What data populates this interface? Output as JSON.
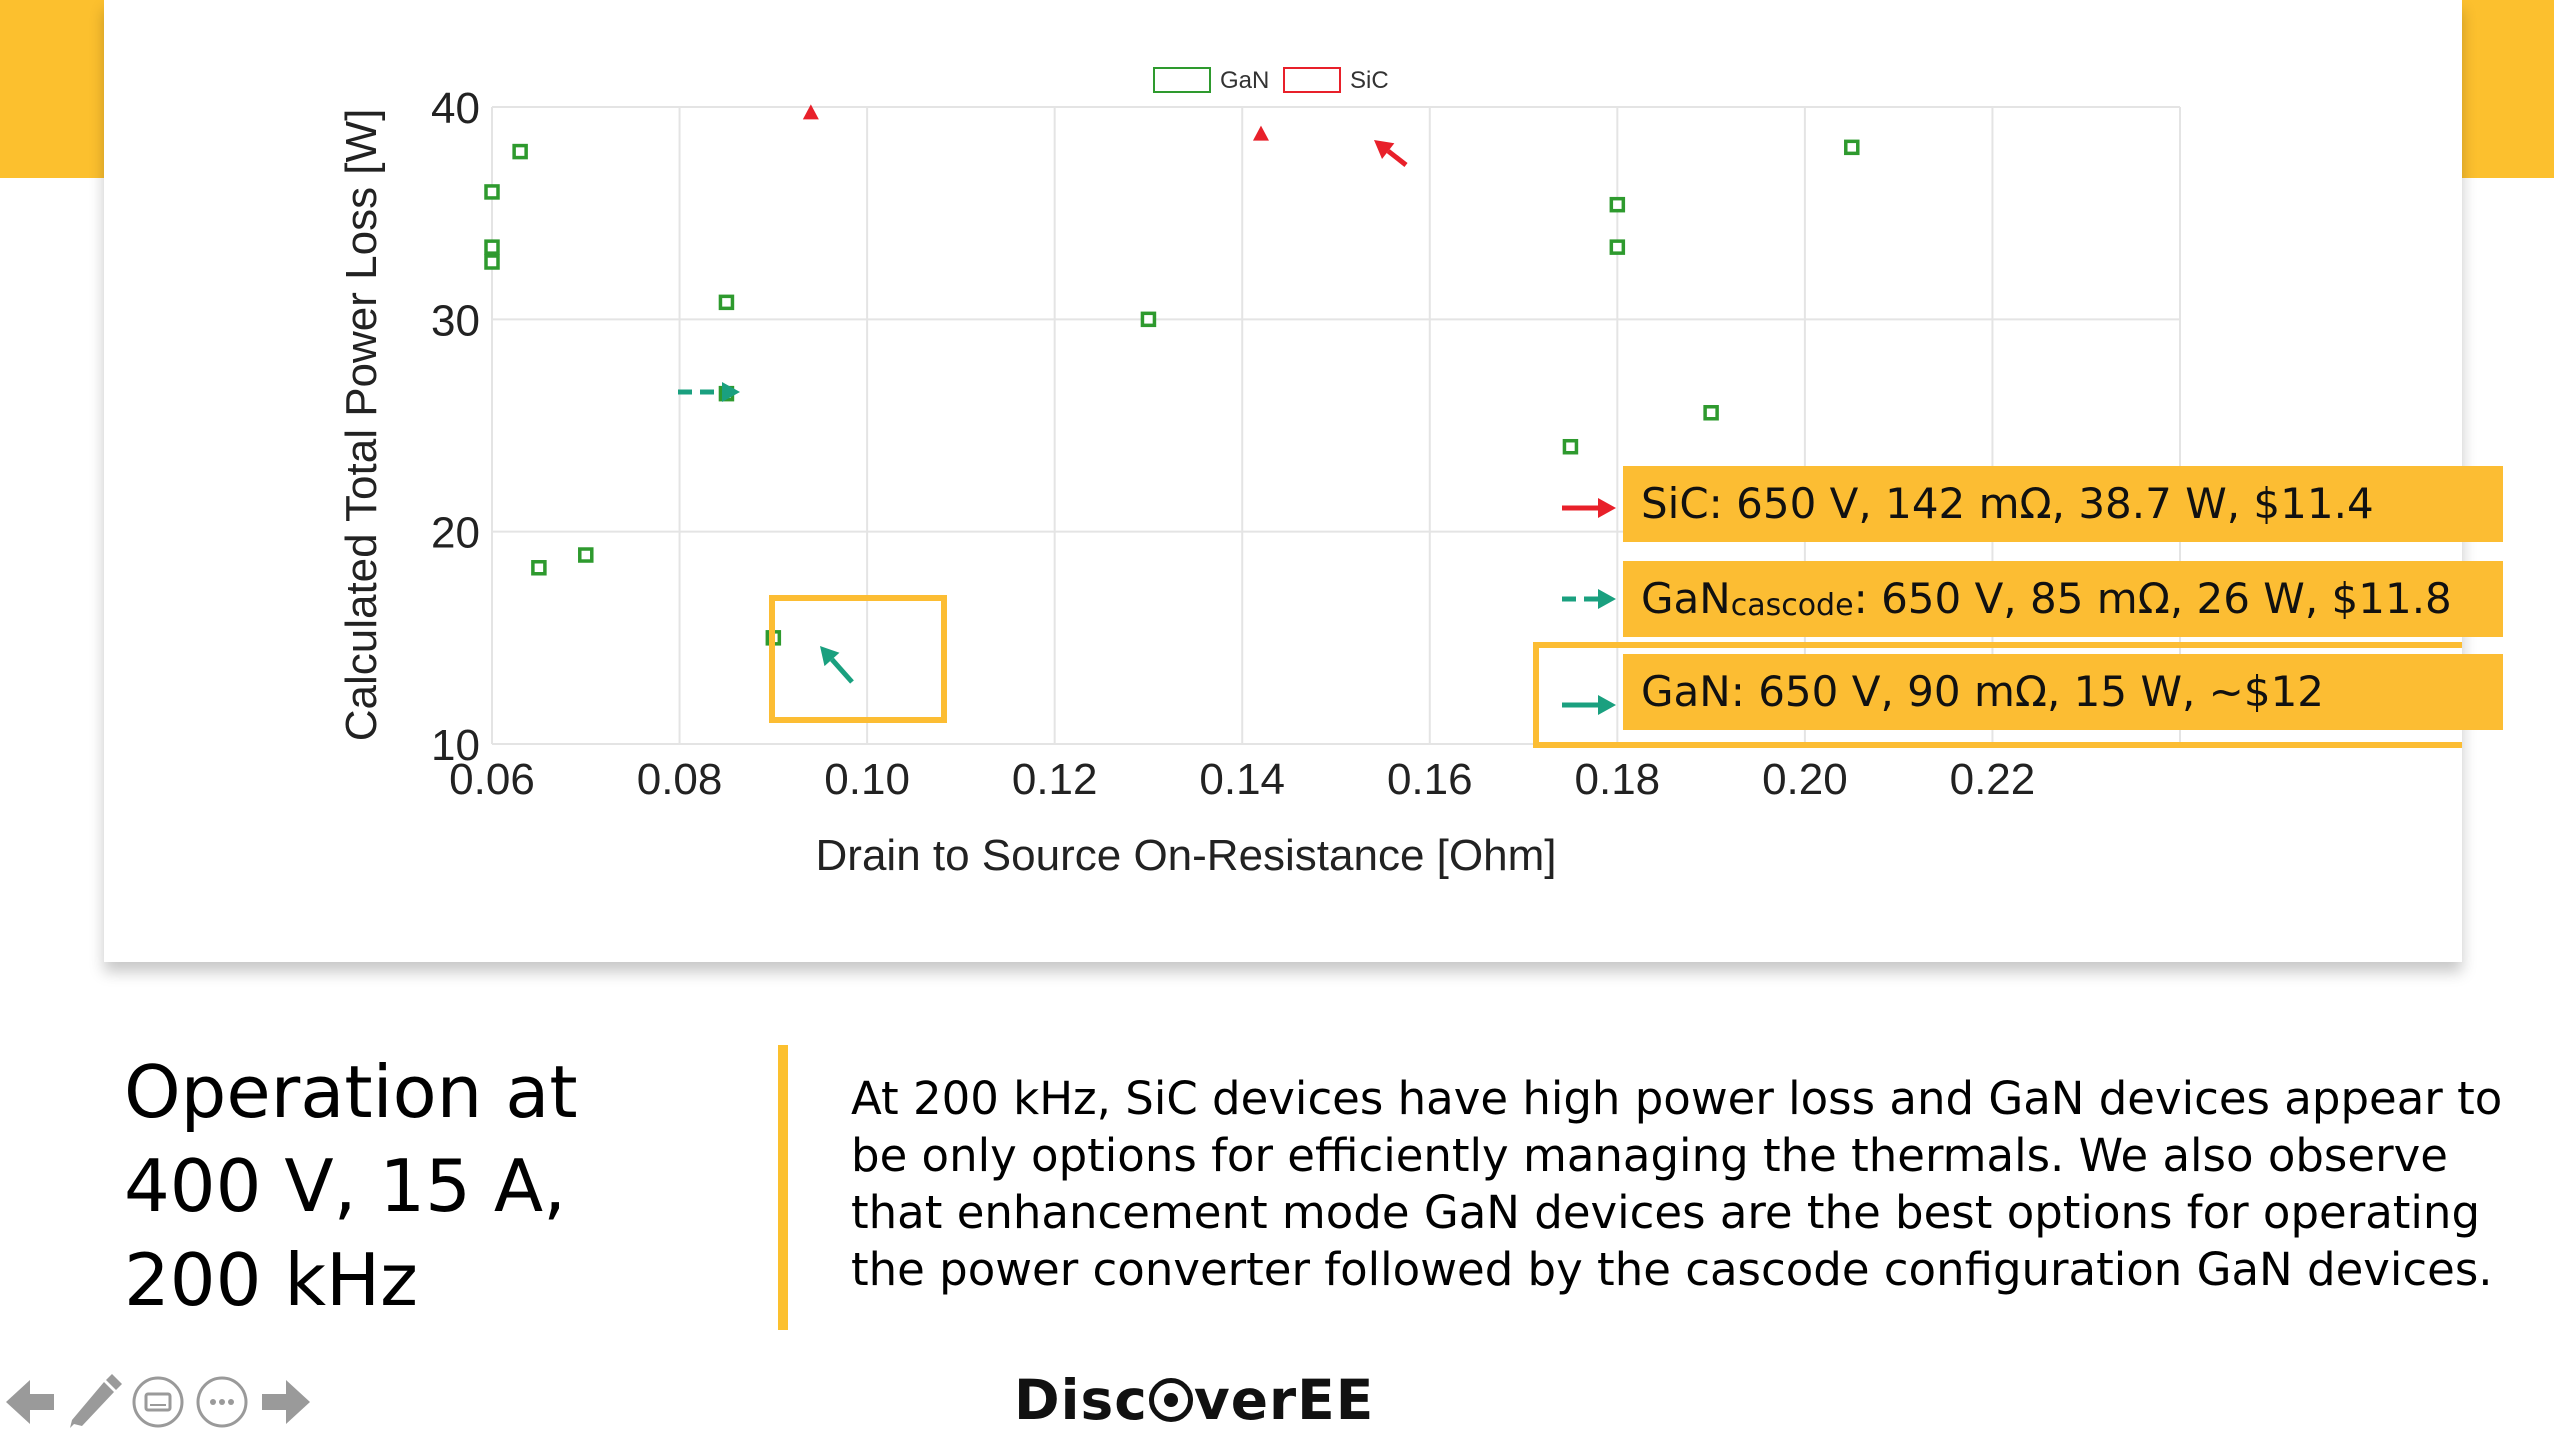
{
  "colors": {
    "accent": "#FCC02E",
    "callout_fill": "#FCBD33",
    "gan": "#2E9A2E",
    "sic": "#E8202A",
    "teal_arrow": "#1AA07F",
    "red_arrow": "#E8202A"
  },
  "chart_data": {
    "type": "scatter",
    "xlabel": "Drain to Source On-Resistance [Ohm]",
    "ylabel": "Calculated Total Power Loss [W]",
    "xlim": [
      0.06,
      0.24
    ],
    "ylim": [
      10,
      40
    ],
    "x_ticks": [
      "0.06",
      "0.08",
      "0.10",
      "0.12",
      "0.14",
      "0.16",
      "0.18",
      "0.20",
      "0.22"
    ],
    "y_ticks": [
      "10",
      "20",
      "30",
      "40"
    ],
    "grid": true,
    "legend_position": "top-center",
    "series": [
      {
        "name": "GaN",
        "marker": "square",
        "color": "#2E9A2E",
        "points": [
          {
            "x": 0.06,
            "y": 36.0
          },
          {
            "x": 0.06,
            "y": 33.4
          },
          {
            "x": 0.06,
            "y": 32.7
          },
          {
            "x": 0.063,
            "y": 37.9
          },
          {
            "x": 0.065,
            "y": 18.3
          },
          {
            "x": 0.07,
            "y": 18.9
          },
          {
            "x": 0.085,
            "y": 30.8
          },
          {
            "x": 0.085,
            "y": 26.5
          },
          {
            "x": 0.09,
            "y": 15.0
          },
          {
            "x": 0.13,
            "y": 30.0
          },
          {
            "x": 0.175,
            "y": 24.0
          },
          {
            "x": 0.18,
            "y": 35.4
          },
          {
            "x": 0.18,
            "y": 33.4
          },
          {
            "x": 0.19,
            "y": 25.6
          },
          {
            "x": 0.205,
            "y": 38.1
          }
        ]
      },
      {
        "name": "SiC",
        "marker": "triangle",
        "color": "#E8202A",
        "points": [
          {
            "x": 0.094,
            "y": 39.7
          },
          {
            "x": 0.142,
            "y": 38.7
          }
        ]
      }
    ]
  },
  "callouts": {
    "sic": "SiC: 650 V, 142 mΩ, 38.7 W, $11.4",
    "cascode_main": "GaN",
    "cascode_sub": "cascode",
    "cascode_rest": ": 650 V, 85 mΩ, 26 W, $11.8",
    "gan": "GaN: 650 V, 90 mΩ, 15 W, ~$12"
  },
  "slide": {
    "title_lines": [
      "Operation at",
      "400 V, 15 A,",
      "200 kHz"
    ],
    "body_lines": [
      "At 200 kHz, SiC devices have high power loss and GaN devices appear to",
      "be only options for efficiently managing the thermals. We also observe",
      "that enhancement mode GaN devices are the best options for operating",
      "the power converter followed by the cascode configuration GaN devices."
    ],
    "logo_prefix": "Disc",
    "logo_suffix": "verEE"
  },
  "controls": {
    "icons": [
      "arrow-left-icon",
      "pen-icon",
      "subtitles-icon",
      "more-icon",
      "arrow-right-icon"
    ]
  }
}
